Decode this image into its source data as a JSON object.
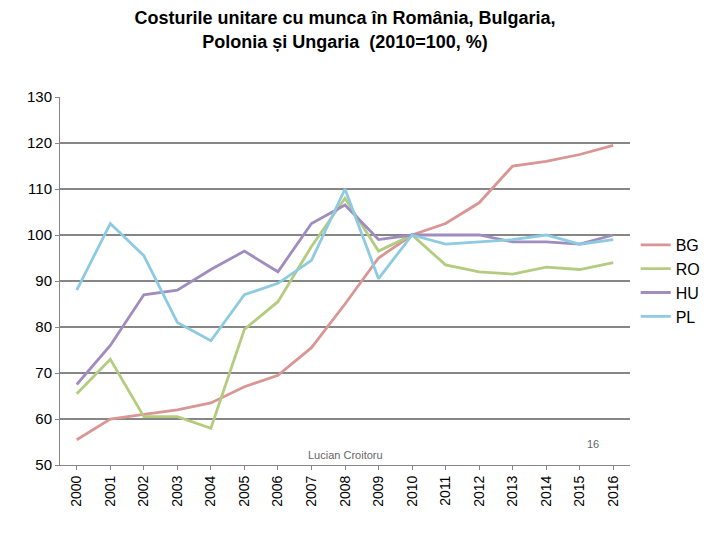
{
  "chart_data": {
    "type": "line",
    "title": "Costurile unitare cu munca în România, Bulgaria,\nPolonia și Ungaria  (2010=100, %)",
    "categories": [
      "2000",
      "2001",
      "2002",
      "2003",
      "2004",
      "2005",
      "2006",
      "2007",
      "2008",
      "2009",
      "2010",
      "2011",
      "2012",
      "2013",
      "2014",
      "2015",
      "2016"
    ],
    "series": [
      {
        "name": "BG",
        "color": "#d99694",
        "values": [
          55.5,
          60,
          61,
          62,
          63.5,
          67,
          69.5,
          75.5,
          85,
          95,
          100,
          102.5,
          107,
          115,
          116,
          117.5,
          119.5
        ]
      },
      {
        "name": "RO",
        "color": "#b3cc7f",
        "values": [
          65.5,
          73,
          60.5,
          60.5,
          58,
          79.5,
          85.5,
          97.5,
          108,
          96.5,
          100,
          93.5,
          92,
          91.5,
          93,
          92.5,
          94
        ]
      },
      {
        "name": "HU",
        "color": "#a08cbf",
        "values": [
          67.5,
          76,
          87,
          88,
          92.5,
          96.5,
          92,
          102.5,
          106.5,
          99,
          100,
          100,
          100,
          98.5,
          98.5,
          98,
          100
        ]
      },
      {
        "name": "PL",
        "color": "#8ccbe0",
        "values": [
          88,
          102.5,
          95.5,
          81,
          77,
          87,
          89.5,
          94.5,
          110,
          90.5,
          100,
          98,
          98.5,
          99,
          100,
          98,
          99
        ]
      }
    ],
    "ylim": [
      50,
      130
    ],
    "yticks": [
      50,
      60,
      70,
      80,
      90,
      100,
      110,
      120,
      130
    ],
    "grid": true,
    "legend": "right",
    "annotations": [
      {
        "text": "Lucian Croitoru"
      },
      {
        "text": "16"
      }
    ]
  }
}
